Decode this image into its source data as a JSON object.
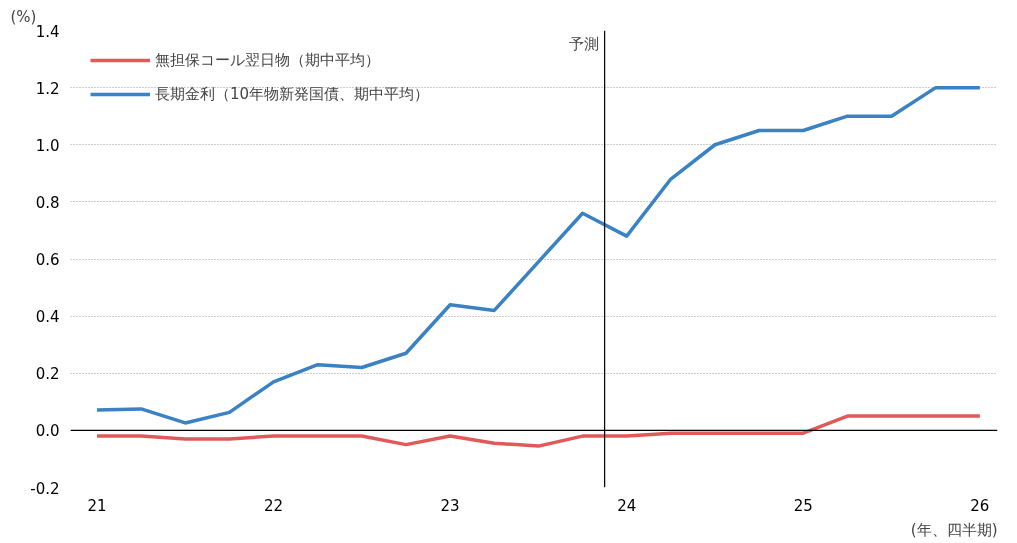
{
  "chart_data": {
    "type": "line",
    "x": [
      21,
      21.25,
      21.5,
      21.75,
      22,
      22.25,
      22.5,
      22.75,
      23,
      23.25,
      23.5,
      23.75,
      24,
      24.25,
      24.5,
      24.75,
      25,
      25.25,
      25.5,
      25.75,
      26
    ],
    "series": [
      {
        "name": "無担保コール翌日物（期中平均）",
        "color": "#e05a5a",
        "values": [
          -0.02,
          -0.02,
          -0.03,
          -0.03,
          -0.02,
          -0.02,
          -0.02,
          -0.05,
          -0.02,
          -0.045,
          -0.055,
          -0.02,
          -0.02,
          -0.01,
          -0.01,
          -0.01,
          -0.01,
          0.05,
          0.05,
          0.05,
          0.05
        ]
      },
      {
        "name": "長期金利（10年物新発国債、期中平均）",
        "color": "#3a82c4",
        "values": [
          0.071,
          0.075,
          0.026,
          0.063,
          0.17,
          0.23,
          0.22,
          0.27,
          0.44,
          0.42,
          0.59,
          0.76,
          0.68,
          0.88,
          1.0,
          1.05,
          1.05,
          1.1,
          1.1,
          1.2,
          1.2
        ]
      }
    ],
    "xlabel": "(年、四半期)",
    "ylabel": "(%)",
    "xlim": [
      20.85,
      26.1
    ],
    "xticks": [
      21,
      22,
      23,
      24,
      25,
      26
    ],
    "ylim": [
      -0.2,
      1.4
    ],
    "yticks": [
      {
        "value": -0.2,
        "label": "-0.2"
      },
      {
        "value": 0,
        "label": "0.0"
      },
      {
        "value": 0.2,
        "label": "0.2"
      },
      {
        "value": 0.4,
        "label": "0.4"
      },
      {
        "value": 0.6,
        "label": "0.6"
      },
      {
        "value": 0.8,
        "label": "0.8"
      },
      {
        "value": 1.0,
        "label": "1.0"
      },
      {
        "value": 1.2,
        "label": "1.2"
      },
      {
        "value": 1.4,
        "label": "1.4"
      }
    ],
    "ref_lines": [
      {
        "axis": "x",
        "value": 23.875,
        "label": "予測",
        "color": "#000000"
      },
      {
        "axis": "y",
        "value": 0,
        "label": null,
        "color": "#000000"
      }
    ],
    "grid": "y",
    "legend": "top left",
    "marker": "none",
    "line_style": "solid"
  }
}
